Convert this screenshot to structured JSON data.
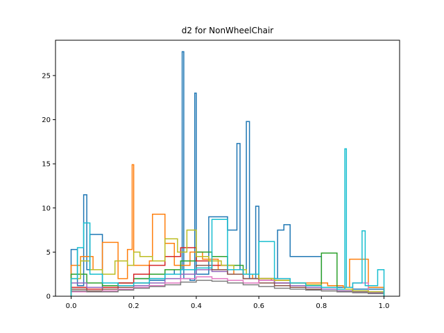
{
  "chart_data": {
    "type": "line",
    "subtype": "step-histogram",
    "title": "d2 for NonWheelChair",
    "xlabel": "",
    "ylabel": "",
    "xlim": [
      -0.05,
      1.05
    ],
    "ylim": [
      0,
      29
    ],
    "xticks": [
      0.0,
      0.2,
      0.4,
      0.6,
      0.8,
      1.0
    ],
    "xtick_labels": [
      "0.0",
      "0.2",
      "0.4",
      "0.6",
      "0.8",
      "1.0"
    ],
    "yticks": [
      0,
      5,
      10,
      15,
      20,
      25
    ],
    "ytick_labels": [
      "0",
      "5",
      "10",
      "15",
      "20",
      "25"
    ],
    "grid": false,
    "legend": "none",
    "series": [
      {
        "color": "#1f77b4",
        "x": [
          0.0,
          0.02,
          0.04,
          0.05,
          0.06,
          0.1,
          0.15,
          0.2,
          0.25,
          0.3,
          0.33,
          0.355,
          0.36,
          0.38,
          0.395,
          0.4,
          0.44,
          0.5,
          0.53,
          0.54,
          0.56,
          0.57,
          0.59,
          0.6,
          0.66,
          0.68,
          0.7,
          0.8,
          0.9,
          1.0
        ],
        "y": [
          5.3,
          1.2,
          11.5,
          3.0,
          7.0,
          1.0,
          1.5,
          2.0,
          1.8,
          2.5,
          3.0,
          27.7,
          2.0,
          1.8,
          23.0,
          2.5,
          9.0,
          7.5,
          17.3,
          3.0,
          19.8,
          2.0,
          10.2,
          2.0,
          7.5,
          8.1,
          4.5,
          1.0,
          0.8,
          0.3
        ]
      },
      {
        "color": "#ff7f0e",
        "x": [
          0.0,
          0.03,
          0.07,
          0.1,
          0.15,
          0.18,
          0.195,
          0.2,
          0.25,
          0.26,
          0.3,
          0.33,
          0.38,
          0.42,
          0.47,
          0.52,
          0.58,
          0.64,
          0.7,
          0.76,
          0.82,
          0.87,
          0.89,
          0.95,
          1.0
        ],
        "y": [
          3.5,
          4.5,
          3.0,
          6.1,
          2.0,
          5.3,
          14.9,
          3.5,
          4.0,
          9.3,
          6.0,
          3.5,
          5.0,
          4.2,
          3.0,
          2.5,
          2.0,
          1.8,
          1.5,
          1.5,
          1.2,
          1.0,
          4.2,
          1.0,
          0.3
        ]
      },
      {
        "color": "#2ca02c",
        "x": [
          0.0,
          0.05,
          0.1,
          0.15,
          0.2,
          0.25,
          0.3,
          0.35,
          0.4,
          0.45,
          0.5,
          0.55,
          0.6,
          0.65,
          0.7,
          0.75,
          0.8,
          0.85,
          0.9,
          0.95,
          1.0
        ],
        "y": [
          2.5,
          1.5,
          1.2,
          1.5,
          2.0,
          2.5,
          3.0,
          4.0,
          5.0,
          4.5,
          3.5,
          2.5,
          2.0,
          1.5,
          1.2,
          1.0,
          4.9,
          0.8,
          0.6,
          0.5,
          0.2
        ]
      },
      {
        "color": "#d62728",
        "x": [
          0.0,
          0.05,
          0.1,
          0.15,
          0.2,
          0.25,
          0.3,
          0.35,
          0.4,
          0.45,
          0.5,
          0.55,
          0.6,
          0.65,
          0.7,
          0.75,
          0.8,
          0.85,
          0.9,
          0.95,
          1.0
        ],
        "y": [
          1.0,
          0.8,
          1.0,
          1.5,
          2.5,
          3.5,
          4.5,
          5.5,
          4.0,
          3.5,
          3.0,
          2.5,
          2.0,
          1.5,
          1.2,
          1.0,
          0.8,
          0.6,
          0.5,
          0.4,
          0.2
        ]
      },
      {
        "color": "#9467bd",
        "x": [
          0.0,
          0.05,
          0.1,
          0.15,
          0.2,
          0.25,
          0.3,
          0.35,
          0.4,
          0.45,
          0.5,
          0.55,
          0.6,
          0.65,
          0.7,
          0.75,
          0.8,
          0.85,
          0.9,
          0.95,
          1.0
        ],
        "y": [
          1.5,
          1.0,
          0.8,
          1.0,
          1.2,
          1.5,
          2.0,
          2.5,
          3.0,
          2.8,
          2.5,
          2.0,
          1.8,
          1.5,
          1.2,
          1.0,
          0.8,
          0.6,
          0.5,
          0.4,
          0.2
        ]
      },
      {
        "color": "#8c564b",
        "x": [
          0.0,
          0.05,
          0.1,
          0.15,
          0.2,
          0.25,
          0.3,
          0.35,
          0.4,
          0.45,
          0.5,
          0.55,
          0.6,
          0.65,
          0.7,
          0.75,
          0.8,
          0.85,
          0.9,
          0.95,
          1.0
        ],
        "y": [
          0.8,
          0.6,
          0.8,
          1.0,
          1.5,
          2.0,
          2.5,
          3.0,
          3.5,
          3.0,
          2.5,
          2.0,
          1.5,
          1.2,
          1.0,
          0.8,
          0.6,
          0.5,
          0.4,
          0.3,
          0.1
        ]
      },
      {
        "color": "#e377c2",
        "x": [
          0.0,
          0.05,
          0.1,
          0.15,
          0.2,
          0.25,
          0.3,
          0.35,
          0.4,
          0.45,
          0.5,
          0.55,
          0.6,
          0.65,
          0.7,
          0.75,
          0.8,
          0.85,
          0.9,
          0.95,
          1.0
        ],
        "y": [
          0.5,
          0.5,
          0.6,
          0.8,
          1.0,
          1.2,
          1.5,
          2.0,
          2.2,
          2.0,
          1.8,
          1.5,
          1.8,
          2.0,
          1.5,
          1.2,
          1.0,
          0.8,
          1.5,
          0.5,
          0.2
        ]
      },
      {
        "color": "#7f7f7f",
        "x": [
          0.0,
          0.05,
          0.1,
          0.15,
          0.2,
          0.25,
          0.3,
          0.35,
          0.4,
          0.45,
          0.5,
          0.55,
          0.6,
          0.65,
          0.7,
          0.75,
          0.8,
          0.85,
          0.9,
          0.95,
          1.0
        ],
        "y": [
          0.6,
          0.5,
          0.5,
          0.7,
          0.9,
          1.1,
          1.3,
          1.6,
          1.8,
          1.7,
          1.5,
          1.3,
          1.1,
          0.9,
          0.8,
          0.7,
          0.6,
          0.5,
          0.4,
          0.3,
          0.1
        ]
      },
      {
        "color": "#bcbd22",
        "x": [
          0.0,
          0.03,
          0.06,
          0.1,
          0.14,
          0.18,
          0.2,
          0.22,
          0.26,
          0.3,
          0.34,
          0.37,
          0.4,
          0.44,
          0.48,
          0.52,
          0.56,
          0.6,
          0.65,
          0.7,
          0.75,
          0.8,
          0.85,
          0.9,
          0.95,
          1.0
        ],
        "y": [
          2.0,
          4.0,
          3.0,
          2.5,
          4.0,
          3.5,
          5.0,
          4.5,
          4.0,
          6.5,
          5.0,
          7.5,
          4.5,
          4.0,
          3.5,
          3.0,
          2.5,
          2.0,
          1.8,
          1.5,
          1.3,
          1.0,
          0.8,
          0.6,
          0.5,
          0.2
        ]
      },
      {
        "color": "#17becf",
        "x": [
          0.0,
          0.02,
          0.04,
          0.06,
          0.1,
          0.15,
          0.2,
          0.25,
          0.3,
          0.35,
          0.4,
          0.45,
          0.5,
          0.55,
          0.6,
          0.65,
          0.7,
          0.75,
          0.8,
          0.85,
          0.875,
          0.88,
          0.9,
          0.93,
          0.94,
          0.98,
          1.0
        ],
        "y": [
          2.0,
          5.5,
          8.3,
          2.5,
          1.5,
          1.2,
          1.5,
          2.0,
          2.5,
          3.0,
          3.2,
          8.7,
          3.0,
          2.5,
          6.2,
          2.0,
          1.5,
          1.2,
          1.0,
          0.8,
          16.7,
          1.0,
          1.5,
          7.4,
          1.2,
          3.0,
          0.5
        ]
      }
    ]
  }
}
